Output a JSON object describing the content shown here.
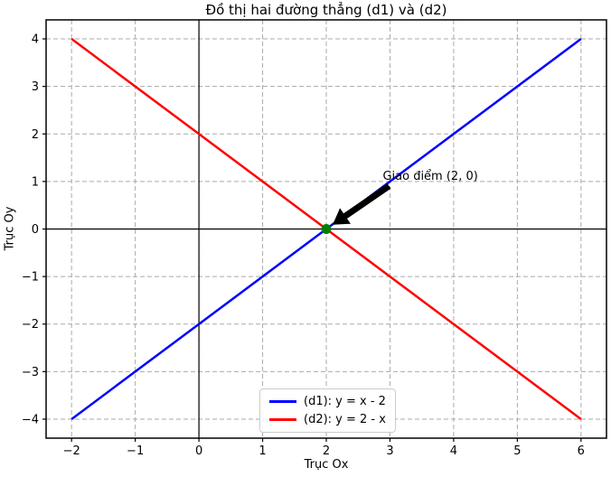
{
  "chart_data": {
    "type": "line",
    "title": "Đồ thị hai đường thẳng (d1) và (d2)",
    "xlabel": "Trục Ox",
    "ylabel": "Trục Oy",
    "xlim": [
      -2.4,
      6.4
    ],
    "ylim": [
      -4.4,
      4.4
    ],
    "xticks": [
      -2,
      -1,
      0,
      1,
      2,
      3,
      4,
      5,
      6
    ],
    "yticks": [
      -4,
      -3,
      -2,
      -1,
      0,
      1,
      2,
      3,
      4
    ],
    "grid": true,
    "grid_style": "dashed",
    "grid_color": "#aaaaaa",
    "axis_line_color": "#000000",
    "series": [
      {
        "name": "(d1): y = x - 2",
        "color": "#0000ff",
        "x": [
          -2,
          6
        ],
        "y": [
          -4,
          4
        ]
      },
      {
        "name": "(d2): y = 2 - x",
        "color": "#ff0000",
        "x": [
          -2,
          6
        ],
        "y": [
          4,
          -4
        ]
      }
    ],
    "intersection_point": {
      "x": 2,
      "y": 0,
      "color": "#008000"
    },
    "annotation": {
      "text": "Giao điểm (2, 0)",
      "xy": [
        2,
        0
      ],
      "xytext": [
        3,
        1
      ],
      "arrow_color": "#000000"
    },
    "legend_position": "lower center"
  }
}
